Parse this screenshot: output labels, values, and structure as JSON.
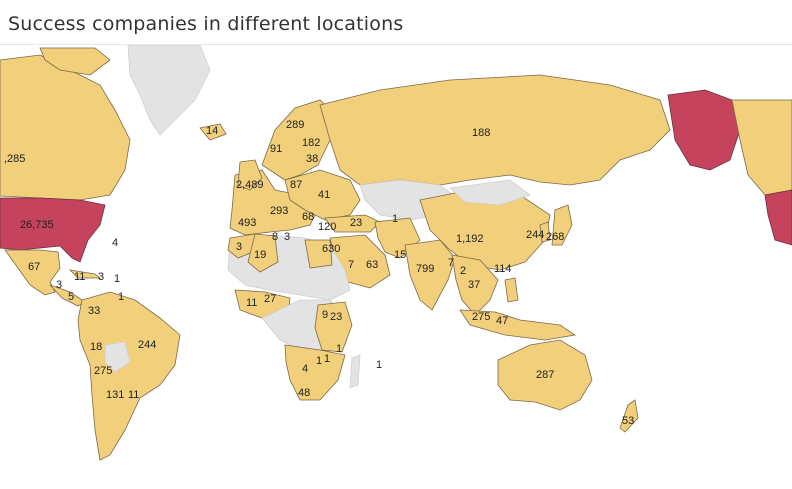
{
  "title": "Success companies in different locations",
  "colors": {
    "low": "#f2cf7a",
    "high": "#c5435d",
    "no_data": "#e3e3e3",
    "border": "#7a6a4a"
  },
  "labels": [
    {
      "id": "canada",
      "text": ",285"
    },
    {
      "id": "usa",
      "text": "26,735"
    },
    {
      "id": "atlantic-1",
      "text": "4"
    },
    {
      "id": "mexico",
      "text": "67"
    },
    {
      "id": "cuba",
      "text": "11"
    },
    {
      "id": "caribbean-1",
      "text": "3"
    },
    {
      "id": "caribbean-2",
      "text": "1"
    },
    {
      "id": "caribbean-3",
      "text": "1"
    },
    {
      "id": "central-am-1",
      "text": "3"
    },
    {
      "id": "central-am-2",
      "text": "5"
    },
    {
      "id": "colombia",
      "text": "33"
    },
    {
      "id": "brazil",
      "text": "244"
    },
    {
      "id": "peru",
      "text": "18"
    },
    {
      "id": "chile-arg",
      "text": "275"
    },
    {
      "id": "argentina",
      "text": "131"
    },
    {
      "id": "uruguay",
      "text": "11"
    },
    {
      "id": "iceland",
      "text": "14"
    },
    {
      "id": "finland",
      "text": "289"
    },
    {
      "id": "sweden",
      "text": "182"
    },
    {
      "id": "norway",
      "text": "91"
    },
    {
      "id": "estonia",
      "text": "38"
    },
    {
      "id": "uk",
      "text": "2,489"
    },
    {
      "id": "poland",
      "text": "87"
    },
    {
      "id": "ukraine",
      "text": "41"
    },
    {
      "id": "germany",
      "text": "293"
    },
    {
      "id": "spain",
      "text": "493"
    },
    {
      "id": "italy",
      "text": "68"
    },
    {
      "id": "greece",
      "text": "120"
    },
    {
      "id": "turkey",
      "text": "23"
    },
    {
      "id": "morocco-1",
      "text": "8"
    },
    {
      "id": "morocco-2",
      "text": "3"
    },
    {
      "id": "algeria-w",
      "text": "3"
    },
    {
      "id": "algeria",
      "text": "19"
    },
    {
      "id": "egypt",
      "text": "630"
    },
    {
      "id": "saudi",
      "text": "7"
    },
    {
      "id": "uae",
      "text": "63"
    },
    {
      "id": "iran",
      "text": "1"
    },
    {
      "id": "pakistan",
      "text": "15"
    },
    {
      "id": "india",
      "text": "799"
    },
    {
      "id": "russia",
      "text": "188"
    },
    {
      "id": "china",
      "text": "1,192"
    },
    {
      "id": "korea",
      "text": "244"
    },
    {
      "id": "japan",
      "text": "268"
    },
    {
      "id": "hongkong",
      "text": "114"
    },
    {
      "id": "myanmar",
      "text": "7"
    },
    {
      "id": "thailand",
      "text": "2"
    },
    {
      "id": "vietnam",
      "text": "37"
    },
    {
      "id": "malaysia",
      "text": "275"
    },
    {
      "id": "indonesia",
      "text": "47"
    },
    {
      "id": "ghana",
      "text": "11"
    },
    {
      "id": "nigeria",
      "text": "27"
    },
    {
      "id": "uganda",
      "text": "9"
    },
    {
      "id": "kenya",
      "text": "23"
    },
    {
      "id": "tanzania",
      "text": "1"
    },
    {
      "id": "zambia",
      "text": "1"
    },
    {
      "id": "zimbabwe",
      "text": "1"
    },
    {
      "id": "namibia",
      "text": "4"
    },
    {
      "id": "south-africa",
      "text": "48"
    },
    {
      "id": "mauritius",
      "text": "1"
    },
    {
      "id": "australia",
      "text": "287"
    },
    {
      "id": "new-zealand",
      "text": "53"
    }
  ]
}
